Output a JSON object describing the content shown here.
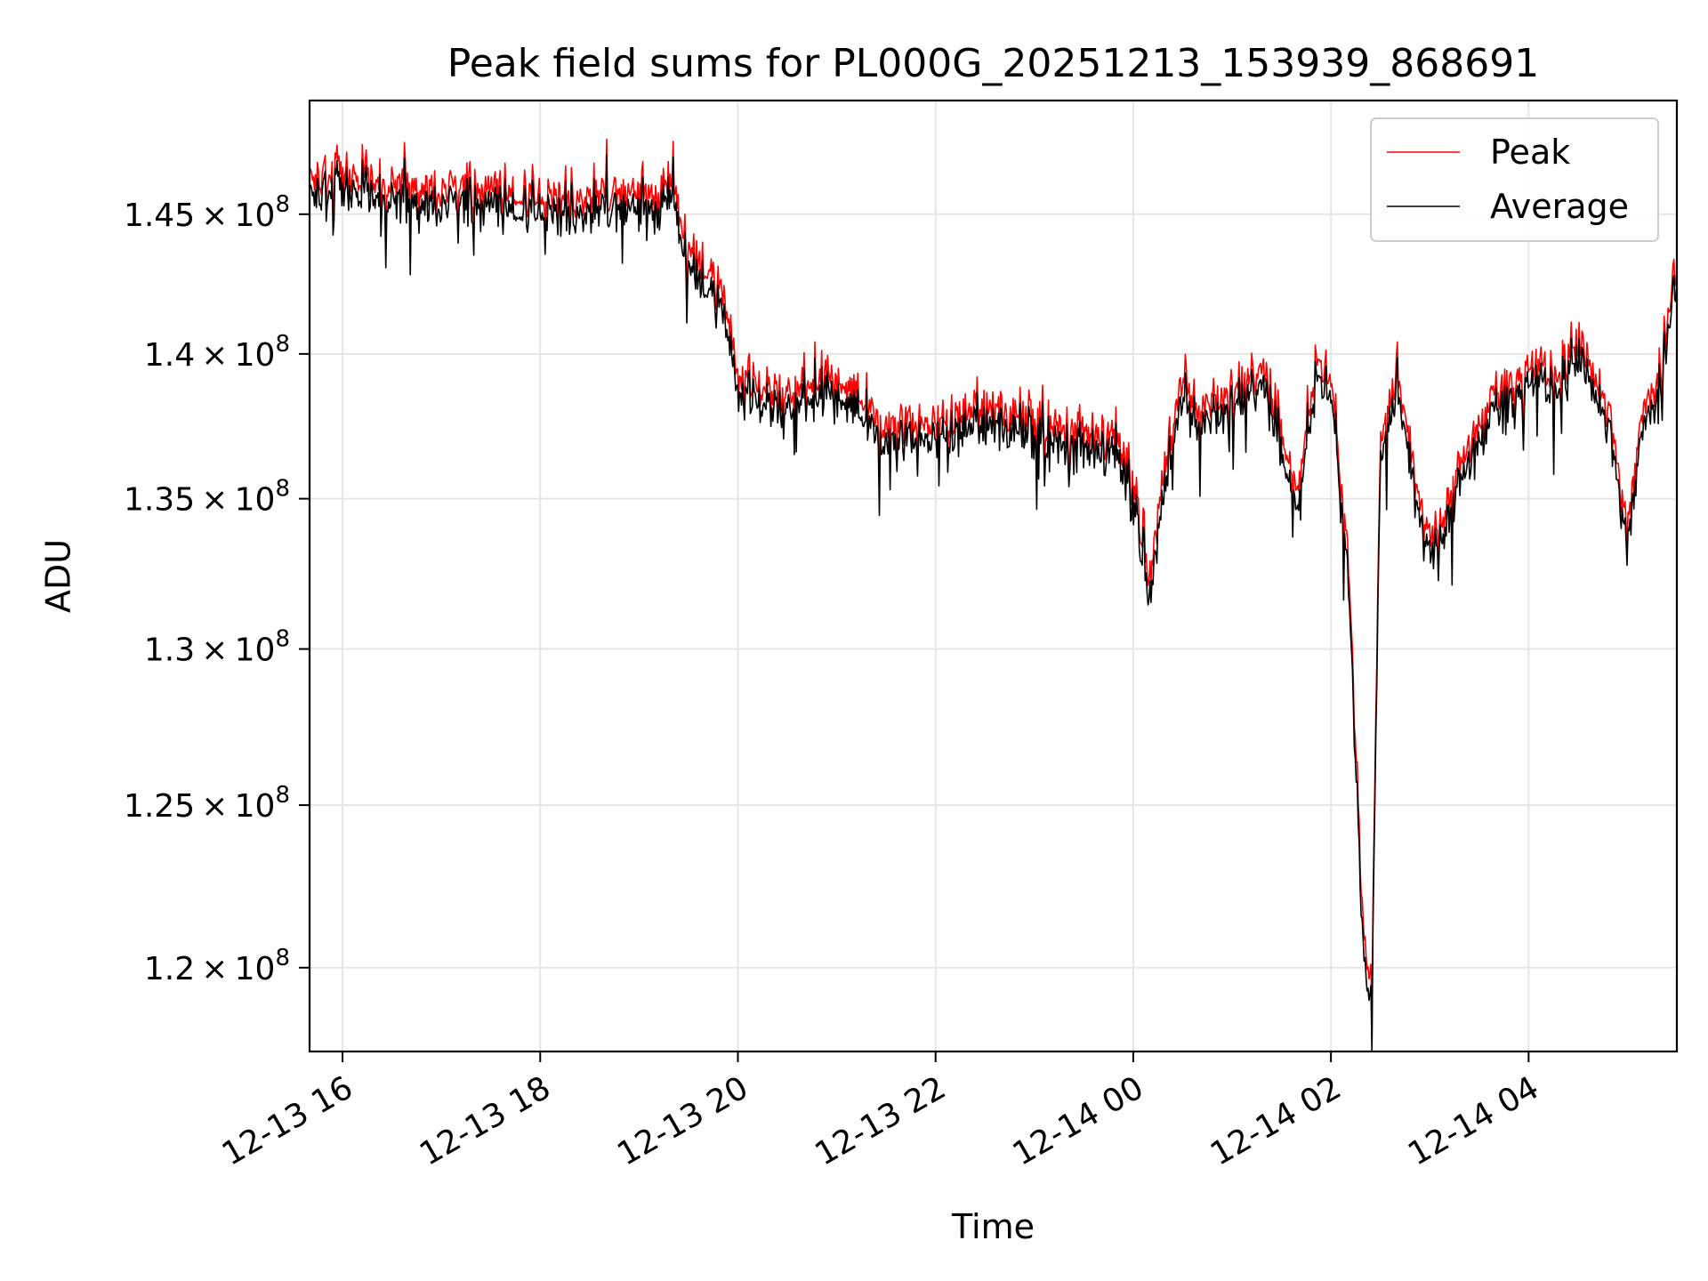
{
  "chart_data": {
    "type": "line",
    "title": "Peak field sums for PL000G_20251213_153939_868691",
    "xlabel": "Time",
    "ylabel": "ADU",
    "y_scale": "log",
    "grid": true,
    "legend_position": "top-right",
    "xlim": [
      "2025-12-13 15:40",
      "2025-12-14 05:30"
    ],
    "ylim": [
      117500000,
      149200000
    ],
    "x_ticks": [
      {
        "value": "2025-12-13 16:00",
        "label": "12-13 16"
      },
      {
        "value": "2025-12-13 18:00",
        "label": "12-13 18"
      },
      {
        "value": "2025-12-13 20:00",
        "label": "12-13 20"
      },
      {
        "value": "2025-12-13 22:00",
        "label": "12-13 22"
      },
      {
        "value": "2025-12-14 00:00",
        "label": "12-14 00"
      },
      {
        "value": "2025-12-14 02:00",
        "label": "12-14 02"
      },
      {
        "value": "2025-12-14 04:00",
        "label": "12-14 04"
      }
    ],
    "y_ticks": [
      {
        "value": 120000000,
        "mantissa": "1.2",
        "base": "10",
        "exp": "8"
      },
      {
        "value": 125000000,
        "mantissa": "1.25",
        "base": "10",
        "exp": "8"
      },
      {
        "value": 130000000,
        "mantissa": "1.3",
        "base": "10",
        "exp": "8"
      },
      {
        "value": 135000000,
        "mantissa": "1.35",
        "base": "10",
        "exp": "8"
      },
      {
        "value": 140000000,
        "mantissa": "1.4",
        "base": "10",
        "exp": "8"
      },
      {
        "value": 145000000,
        "mantissa": "1.45",
        "base": "10",
        "exp": "8"
      }
    ],
    "series": [
      {
        "name": "Peak",
        "color": "#ff0000",
        "x": [
          "2025-12-13 15:40",
          "2025-12-13 16:00",
          "2025-12-13 16:30",
          "2025-12-13 17:00",
          "2025-12-13 17:30",
          "2025-12-13 18:00",
          "2025-12-13 18:30",
          "2025-12-13 19:00",
          "2025-12-13 19:10",
          "2025-12-13 19:20",
          "2025-12-13 19:30",
          "2025-12-13 19:40",
          "2025-12-13 19:50",
          "2025-12-13 20:00",
          "2025-12-13 20:30",
          "2025-12-13 21:00",
          "2025-12-13 21:30",
          "2025-12-13 22:00",
          "2025-12-13 22:30",
          "2025-12-13 23:00",
          "2025-12-13 23:30",
          "2025-12-13 23:50",
          "2025-12-14 00:00",
          "2025-12-14 00:10",
          "2025-12-14 00:20",
          "2025-12-14 00:30",
          "2025-12-14 00:40",
          "2025-12-14 01:00",
          "2025-12-14 01:20",
          "2025-12-14 01:40",
          "2025-12-14 01:50",
          "2025-12-14 02:00",
          "2025-12-14 02:10",
          "2025-12-14 02:20",
          "2025-12-14 02:25",
          "2025-12-14 02:30",
          "2025-12-14 02:40",
          "2025-12-14 02:50",
          "2025-12-14 03:00",
          "2025-12-14 03:10",
          "2025-12-14 03:20",
          "2025-12-14 03:40",
          "2025-12-14 04:00",
          "2025-12-14 04:20",
          "2025-12-14 04:30",
          "2025-12-14 04:40",
          "2025-12-14 04:50",
          "2025-12-14 05:00",
          "2025-12-14 05:10",
          "2025-12-14 05:20",
          "2025-12-14 05:30"
        ],
        "y": [
          146100000,
          146300000,
          146000000,
          145800000,
          145900000,
          145400000,
          145500000,
          145800000,
          145400000,
          145900000,
          143500000,
          142800000,
          142300000,
          138900000,
          138400000,
          139000000,
          137200000,
          137500000,
          138000000,
          137500000,
          136900000,
          137100000,
          135400000,
          132000000,
          136500000,
          139000000,
          137800000,
          138800000,
          139200000,
          135000000,
          139300000,
          139000000,
          133500000,
          120500000,
          119500000,
          137000000,
          139000000,
          135800000,
          133600000,
          134500000,
          136000000,
          138500000,
          139200000,
          139400000,
          140000000,
          139000000,
          137500000,
          133700000,
          138000000,
          139500000,
          142600000
        ]
      },
      {
        "name": "Average",
        "color": "#000000",
        "x": [
          "2025-12-13 15:40",
          "2025-12-13 16:00",
          "2025-12-13 16:30",
          "2025-12-13 17:00",
          "2025-12-13 17:30",
          "2025-12-13 18:00",
          "2025-12-13 18:30",
          "2025-12-13 19:00",
          "2025-12-13 19:10",
          "2025-12-13 19:20",
          "2025-12-13 19:30",
          "2025-12-13 19:40",
          "2025-12-13 19:50",
          "2025-12-13 20:00",
          "2025-12-13 20:30",
          "2025-12-13 21:00",
          "2025-12-13 21:30",
          "2025-12-13 22:00",
          "2025-12-13 22:30",
          "2025-12-13 23:00",
          "2025-12-13 23:30",
          "2025-12-13 23:50",
          "2025-12-14 00:00",
          "2025-12-14 00:10",
          "2025-12-14 00:20",
          "2025-12-14 00:30",
          "2025-12-14 00:40",
          "2025-12-14 01:00",
          "2025-12-14 01:20",
          "2025-12-14 01:40",
          "2025-12-14 01:50",
          "2025-12-14 02:00",
          "2025-12-14 02:10",
          "2025-12-14 02:20",
          "2025-12-14 02:25",
          "2025-12-14 02:30",
          "2025-12-14 02:40",
          "2025-12-14 02:50",
          "2025-12-14 03:00",
          "2025-12-14 03:10",
          "2025-12-14 03:20",
          "2025-12-14 03:40",
          "2025-12-14 04:00",
          "2025-12-14 04:20",
          "2025-12-14 04:30",
          "2025-12-14 04:40",
          "2025-12-14 04:50",
          "2025-12-14 05:00",
          "2025-12-14 05:10",
          "2025-12-14 05:20",
          "2025-12-14 05:30"
        ],
        "y": [
          145700000,
          145900000,
          145600000,
          145400000,
          145500000,
          145000000,
          145100000,
          145400000,
          145000000,
          145500000,
          143000000,
          142300000,
          141800000,
          138500000,
          138000000,
          138600000,
          136800000,
          137100000,
          137600000,
          137100000,
          136500000,
          136700000,
          135000000,
          131500000,
          136000000,
          138500000,
          137400000,
          138400000,
          138800000,
          134500000,
          138900000,
          138600000,
          133000000,
          120000000,
          119000000,
          136500000,
          138600000,
          135400000,
          133200000,
          134100000,
          135600000,
          138100000,
          138800000,
          139000000,
          139600000,
          138600000,
          137100000,
          133300000,
          137600000,
          139100000,
          142200000
        ]
      }
    ]
  }
}
